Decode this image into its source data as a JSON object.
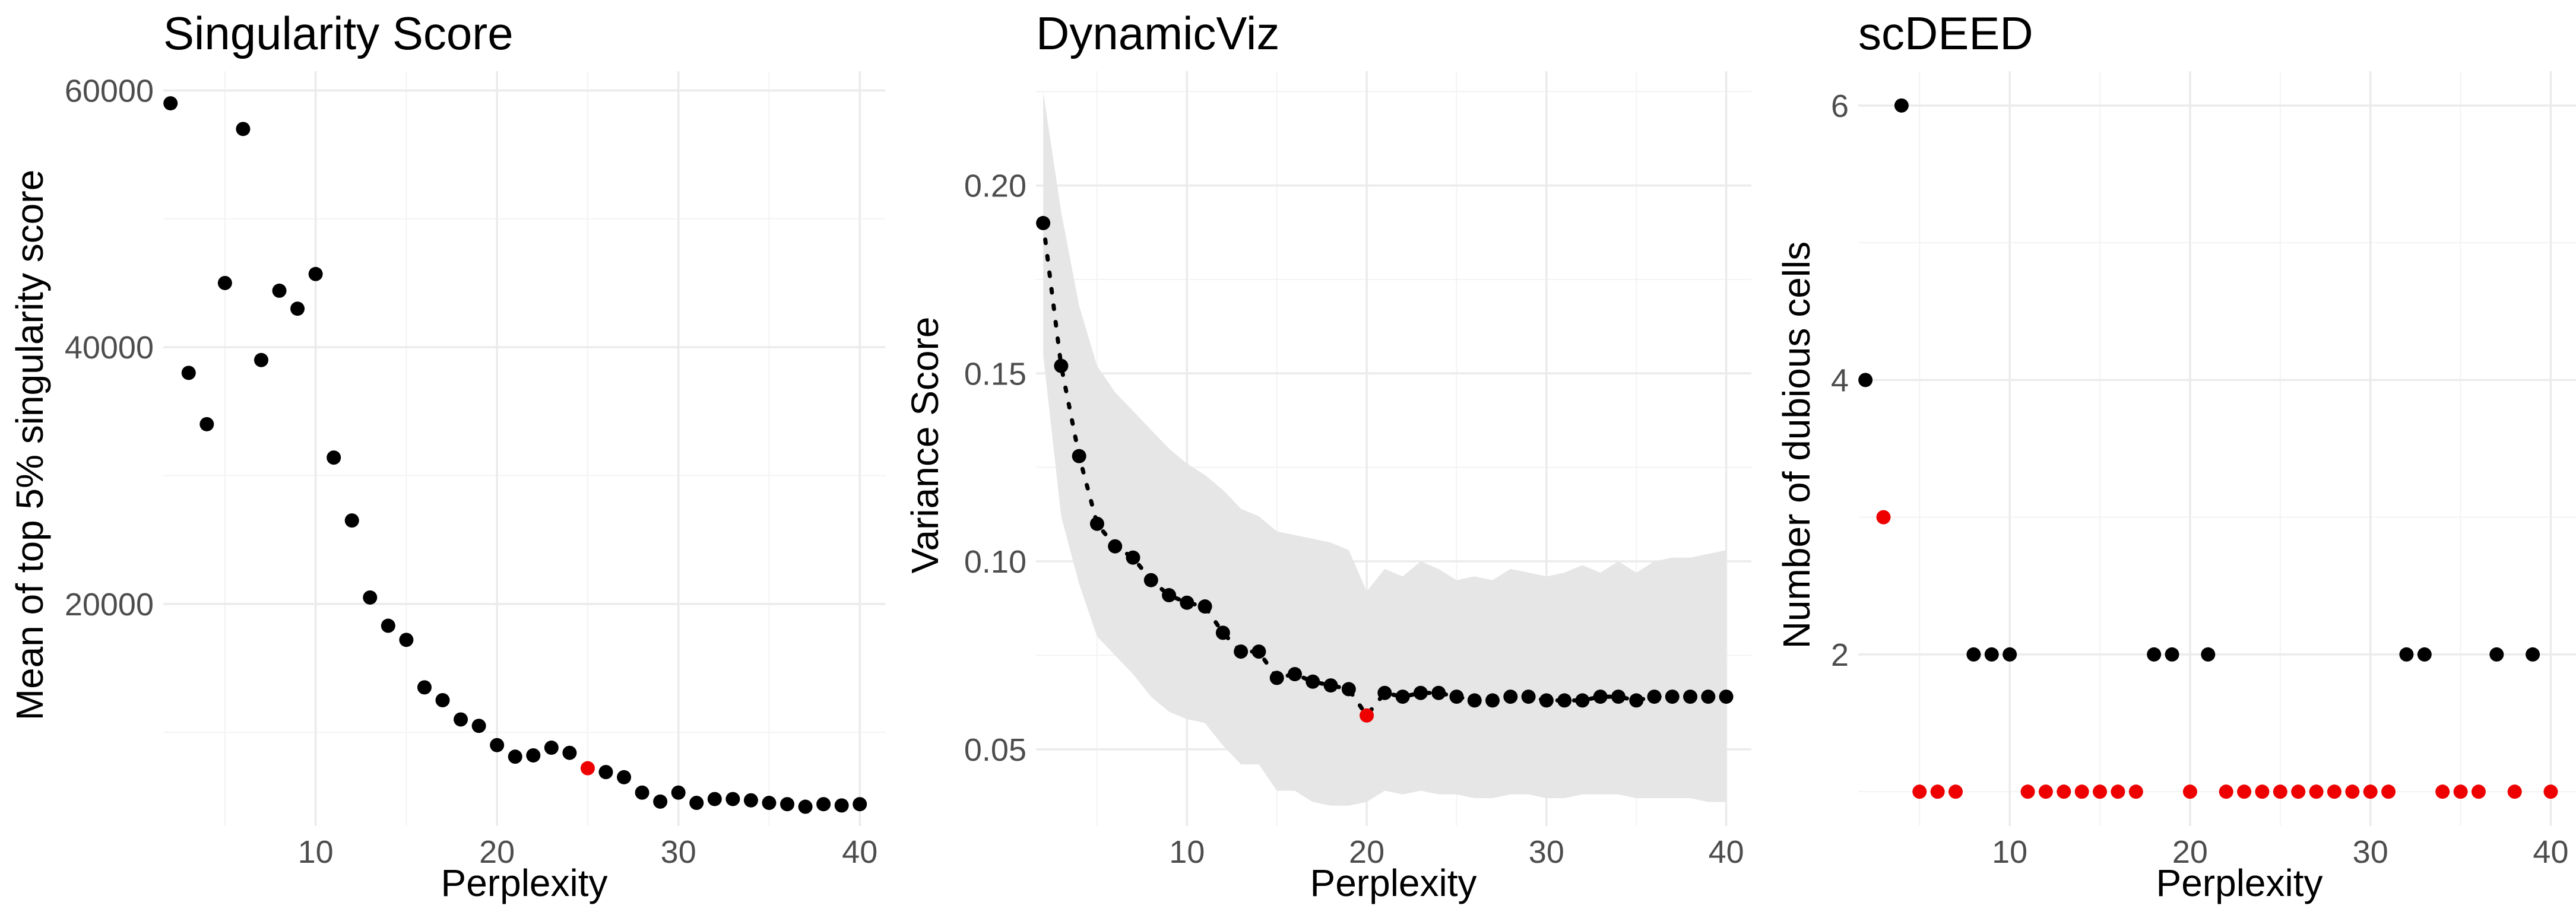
{
  "colors": {
    "normal": "#000000",
    "highlight": "#ee0000",
    "ribbon": "#e6e6e6"
  },
  "chart_data": [
    {
      "type": "scatter",
      "title": "Singularity Score",
      "xlabel": "Perplexity",
      "ylabel": "Mean of top 5% singularity score",
      "xlim": [
        1.6,
        41.4
      ],
      "ylim": [
        2700,
        61500
      ],
      "xticks": [
        10,
        20,
        30,
        40
      ],
      "xtick_labels": [
        "10",
        "20",
        "30",
        "40"
      ],
      "yticks": [
        20000,
        40000,
        60000
      ],
      "ytick_labels": [
        "20000",
        "40000",
        "60000"
      ],
      "grid": true,
      "legend": "none",
      "x": [
        2,
        3,
        4,
        5,
        6,
        7,
        8,
        9,
        10,
        11,
        12,
        13,
        14,
        15,
        16,
        17,
        18,
        19,
        20,
        21,
        22,
        23,
        24,
        25,
        26,
        27,
        28,
        29,
        30,
        31,
        32,
        33,
        34,
        35,
        36,
        37,
        38,
        39,
        40
      ],
      "y": [
        59000,
        38000,
        34000,
        45000,
        57000,
        39000,
        44400,
        43000,
        45700,
        31400,
        26500,
        20500,
        18300,
        17200,
        13500,
        12500,
        11000,
        10500,
        9000,
        8100,
        8200,
        8800,
        8400,
        7200,
        6900,
        6500,
        5300,
        4600,
        5300,
        4500,
        4800,
        4800,
        4700,
        4500,
        4400,
        4200,
        4400,
        4300,
        4400
      ],
      "highlight": [
        0,
        0,
        0,
        0,
        0,
        0,
        0,
        0,
        0,
        0,
        0,
        0,
        0,
        0,
        0,
        0,
        0,
        0,
        0,
        0,
        0,
        0,
        0,
        1,
        0,
        0,
        0,
        0,
        0,
        0,
        0,
        0,
        0,
        0,
        0,
        0,
        0,
        0,
        0
      ]
    },
    {
      "type": "line",
      "title": "DynamicViz",
      "xlabel": "Perplexity",
      "ylabel": "Variance Score",
      "xlim": [
        1.6,
        41.4
      ],
      "ylim": [
        0.0296,
        0.2304
      ],
      "xticks": [
        10,
        20,
        30,
        40
      ],
      "xtick_labels": [
        "10",
        "20",
        "30",
        "40"
      ],
      "yticks": [
        0.05,
        0.1,
        0.15,
        0.2
      ],
      "ytick_labels": [
        "0.05",
        "0.10",
        "0.15",
        "0.20"
      ],
      "grid": true,
      "legend": "none",
      "x": [
        2,
        3,
        4,
        5,
        6,
        7,
        8,
        9,
        10,
        11,
        12,
        13,
        14,
        15,
        16,
        17,
        18,
        19,
        20,
        21,
        22,
        23,
        24,
        25,
        26,
        27,
        28,
        29,
        30,
        31,
        32,
        33,
        34,
        35,
        36,
        37,
        38,
        39,
        40
      ],
      "y": [
        0.19,
        0.152,
        0.128,
        0.11,
        0.104,
        0.101,
        0.095,
        0.091,
        0.089,
        0.088,
        0.081,
        0.076,
        0.076,
        0.069,
        0.07,
        0.068,
        0.067,
        0.066,
        0.059,
        0.065,
        0.064,
        0.065,
        0.065,
        0.064,
        0.063,
        0.063,
        0.064,
        0.064,
        0.063,
        0.063,
        0.063,
        0.064,
        0.064,
        0.063,
        0.064,
        0.064,
        0.064,
        0.064,
        0.064
      ],
      "band_upper": [
        0.225,
        0.193,
        0.168,
        0.152,
        0.145,
        0.14,
        0.135,
        0.13,
        0.126,
        0.123,
        0.119,
        0.114,
        0.112,
        0.108,
        0.107,
        0.106,
        0.105,
        0.103,
        0.092,
        0.098,
        0.096,
        0.1,
        0.098,
        0.095,
        0.096,
        0.095,
        0.098,
        0.097,
        0.096,
        0.097,
        0.099,
        0.097,
        0.1,
        0.097,
        0.1,
        0.101,
        0.101,
        0.102,
        0.103
      ],
      "band_lower": [
        0.155,
        0.112,
        0.094,
        0.08,
        0.075,
        0.07,
        0.064,
        0.06,
        0.058,
        0.057,
        0.051,
        0.046,
        0.046,
        0.039,
        0.039,
        0.036,
        0.035,
        0.035,
        0.036,
        0.039,
        0.038,
        0.039,
        0.038,
        0.038,
        0.037,
        0.037,
        0.038,
        0.038,
        0.037,
        0.037,
        0.038,
        0.038,
        0.038,
        0.037,
        0.037,
        0.037,
        0.037,
        0.036,
        0.036
      ],
      "highlight": [
        0,
        0,
        0,
        0,
        0,
        0,
        0,
        0,
        0,
        0,
        0,
        0,
        0,
        0,
        0,
        0,
        0,
        0,
        1,
        0,
        0,
        0,
        0,
        0,
        0,
        0,
        0,
        0,
        0,
        0,
        0,
        0,
        0,
        0,
        0,
        0,
        0,
        0,
        0
      ]
    },
    {
      "type": "scatter",
      "title": "scDEED",
      "xlabel": "Perplexity",
      "ylabel": "Number of dubious cells",
      "xlim": [
        1.6,
        41.4
      ],
      "ylim": [
        0.75,
        6.25
      ],
      "xticks": [
        10,
        20,
        30,
        40
      ],
      "xtick_labels": [
        "10",
        "20",
        "30",
        "40"
      ],
      "yticks": [
        2,
        4,
        6
      ],
      "ytick_labels": [
        "2",
        "4",
        "6"
      ],
      "grid": true,
      "legend": "none",
      "x": [
        2,
        3,
        4,
        5,
        6,
        7,
        8,
        9,
        10,
        11,
        12,
        13,
        14,
        15,
        16,
        17,
        18,
        19,
        20,
        21,
        22,
        23,
        24,
        25,
        26,
        27,
        28,
        29,
        30,
        31,
        32,
        33,
        34,
        35,
        36,
        37,
        38,
        39,
        40
      ],
      "y": [
        4,
        3,
        6,
        1,
        1,
        1,
        2,
        2,
        2,
        1,
        1,
        1,
        1,
        1,
        1,
        1,
        2,
        2,
        1,
        2,
        1,
        1,
        1,
        1,
        1,
        1,
        1,
        1,
        1,
        1,
        2,
        2,
        1,
        1,
        1,
        2,
        1,
        2,
        1
      ],
      "highlight": [
        0,
        1,
        0,
        1,
        1,
        1,
        0,
        0,
        0,
        1,
        1,
        1,
        1,
        1,
        1,
        1,
        0,
        0,
        1,
        0,
        1,
        1,
        1,
        1,
        1,
        1,
        1,
        1,
        1,
        1,
        0,
        0,
        1,
        1,
        1,
        0,
        1,
        0,
        1
      ]
    }
  ]
}
